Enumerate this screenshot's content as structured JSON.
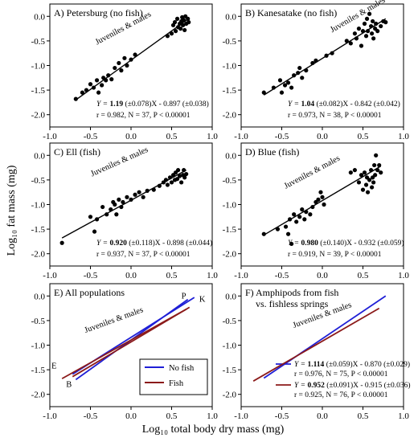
{
  "figure": {
    "ylabel": "Log₁₀ fat mass (mg)",
    "xlabel": "Log₁₀ total body dry mass (mg)"
  },
  "chart_data": [
    {
      "id": "A",
      "type": "scatter",
      "title": "A) Petersburg (no fish)",
      "annotation": "Juveniles & males",
      "eq": {
        "lead": "Y = ",
        "slope": "1.19",
        "rest": " (±0.078)X - 0.897 (±0.038)"
      },
      "stats": "r = 0.982, N = 37, P < 0.00001",
      "xlim": [
        -1.0,
        1.0
      ],
      "ylim": [
        -2.25,
        0.25
      ],
      "xticks": [
        "-1.0",
        "-0.5",
        "0.0",
        "0.5",
        "1.0"
      ],
      "yticks": [
        "-2.0",
        "-1.5",
        "-1.0",
        "-0.5",
        "0.0"
      ],
      "line": {
        "x1": -0.68,
        "y1": -1.7,
        "x2": 0.7,
        "y2": -0.06
      },
      "points": [
        [
          -0.68,
          -1.68
        ],
        [
          -0.6,
          -1.55
        ],
        [
          -0.55,
          -1.5
        ],
        [
          -0.5,
          -1.38
        ],
        [
          -0.46,
          -1.45
        ],
        [
          -0.42,
          -1.3
        ],
        [
          -0.4,
          -1.55
        ],
        [
          -0.36,
          -1.4
        ],
        [
          -0.34,
          -1.25
        ],
        [
          -0.31,
          -1.3
        ],
        [
          -0.28,
          -1.2
        ],
        [
          -0.24,
          -1.28
        ],
        [
          -0.2,
          -1.05
        ],
        [
          -0.15,
          -0.95
        ],
        [
          -0.12,
          -1.1
        ],
        [
          -0.08,
          -0.85
        ],
        [
          -0.05,
          -1.0
        ],
        [
          0.0,
          -0.88
        ],
        [
          0.05,
          -0.78
        ],
        [
          0.45,
          -0.4
        ],
        [
          0.5,
          -0.35
        ],
        [
          0.52,
          -0.18
        ],
        [
          0.54,
          -0.12
        ],
        [
          0.55,
          -0.3
        ],
        [
          0.57,
          -0.05
        ],
        [
          0.58,
          -0.22
        ],
        [
          0.6,
          -0.15
        ],
        [
          0.61,
          -0.25
        ],
        [
          0.62,
          -0.1
        ],
        [
          0.63,
          -0.02
        ],
        [
          0.64,
          -0.18
        ],
        [
          0.65,
          -0.08
        ],
        [
          0.66,
          -0.28
        ],
        [
          0.67,
          0.0
        ],
        [
          0.68,
          -0.15
        ],
        [
          0.7,
          -0.05
        ],
        [
          0.71,
          -0.12
        ]
      ]
    },
    {
      "id": "B",
      "type": "scatter",
      "title": "B) Kanesatake (no fish)",
      "annotation": "Juveniles & males",
      "eq": {
        "lead": "Y = ",
        "slope": "1.04",
        "rest": " (±0.082)X - 0.842 (±0.042)"
      },
      "stats": "r = 0.973, N = 38, P < 0.00001",
      "xlim": [
        -1.0,
        1.0
      ],
      "ylim": [
        -2.25,
        0.25
      ],
      "xticks": [
        "-1.0",
        "-0.5",
        "0.0",
        "0.5",
        "1.0"
      ],
      "yticks": [
        "-2.0",
        "-1.5",
        "-1.0",
        "-0.5",
        "0.0"
      ],
      "line": {
        "x1": -0.72,
        "y1": -1.6,
        "x2": 0.78,
        "y2": -0.05
      },
      "points": [
        [
          -0.72,
          -1.55
        ],
        [
          -0.6,
          -1.45
        ],
        [
          -0.52,
          -1.3
        ],
        [
          -0.5,
          -1.55
        ],
        [
          -0.46,
          -1.4
        ],
        [
          -0.42,
          -1.35
        ],
        [
          -0.38,
          -1.45
        ],
        [
          -0.35,
          -1.2
        ],
        [
          -0.3,
          -1.15
        ],
        [
          -0.28,
          -1.05
        ],
        [
          -0.25,
          -1.25
        ],
        [
          -0.2,
          -1.1
        ],
        [
          -0.12,
          -0.95
        ],
        [
          -0.08,
          -0.9
        ],
        [
          0.05,
          -0.8
        ],
        [
          0.12,
          -0.75
        ],
        [
          0.35,
          -0.55
        ],
        [
          0.4,
          -0.35
        ],
        [
          0.42,
          -0.45
        ],
        [
          0.45,
          -0.25
        ],
        [
          0.48,
          -0.6
        ],
        [
          0.5,
          -0.3
        ],
        [
          0.52,
          -0.15
        ],
        [
          0.54,
          -0.4
        ],
        [
          0.55,
          -0.05
        ],
        [
          0.56,
          -0.3
        ],
        [
          0.58,
          0.05
        ],
        [
          0.6,
          -0.2
        ],
        [
          0.61,
          -0.35
        ],
        [
          0.62,
          -0.1
        ],
        [
          0.63,
          -0.45
        ],
        [
          0.65,
          -0.25
        ],
        [
          0.66,
          -0.15
        ],
        [
          0.68,
          -0.3
        ],
        [
          0.72,
          -0.2
        ],
        [
          0.75,
          -0.1
        ],
        [
          0.78,
          -0.12
        ],
        [
          0.3,
          -0.5
        ]
      ]
    },
    {
      "id": "C",
      "type": "scatter",
      "title": "C) Ell (fish)",
      "annotation": "Juveniles & males",
      "eq": {
        "lead": "Y = ",
        "slope": "0.920",
        "rest": " (±0.118)X - 0.898 (±0.044)"
      },
      "stats": "r = 0.937, N = 37, P < 0.00001",
      "xlim": [
        -1.0,
        1.0
      ],
      "ylim": [
        -2.25,
        0.25
      ],
      "xticks": [
        "-1.0",
        "-0.5",
        "0.0",
        "0.5",
        "1.0"
      ],
      "yticks": [
        "-2.0",
        "-1.5",
        "-1.0",
        "-0.5",
        "0.0"
      ],
      "line": {
        "x1": -0.85,
        "y1": -1.68,
        "x2": 0.68,
        "y2": -0.3
      },
      "points": [
        [
          -0.85,
          -1.78
        ],
        [
          -0.5,
          -1.25
        ],
        [
          -0.45,
          -1.55
        ],
        [
          -0.42,
          -1.3
        ],
        [
          -0.35,
          -1.05
        ],
        [
          -0.3,
          -1.2
        ],
        [
          -0.25,
          -1.1
        ],
        [
          -0.22,
          -0.95
        ],
        [
          -0.2,
          -1.0
        ],
        [
          -0.18,
          -1.2
        ],
        [
          -0.15,
          -0.9
        ],
        [
          -0.12,
          -1.05
        ],
        [
          -0.1,
          -0.95
        ],
        [
          -0.05,
          -0.85
        ],
        [
          0.0,
          -0.9
        ],
        [
          0.05,
          -0.8
        ],
        [
          0.1,
          -0.75
        ],
        [
          0.15,
          -0.85
        ],
        [
          0.2,
          -0.72
        ],
        [
          0.28,
          -0.7
        ],
        [
          0.35,
          -0.62
        ],
        [
          0.4,
          -0.55
        ],
        [
          0.43,
          -0.5
        ],
        [
          0.45,
          -0.6
        ],
        [
          0.48,
          -0.45
        ],
        [
          0.5,
          -0.55
        ],
        [
          0.52,
          -0.4
        ],
        [
          0.54,
          -0.5
        ],
        [
          0.55,
          -0.35
        ],
        [
          0.57,
          -0.48
        ],
        [
          0.58,
          -0.3
        ],
        [
          0.6,
          -0.42
        ],
        [
          0.62,
          -0.55
        ],
        [
          0.64,
          -0.4
        ],
        [
          0.65,
          -0.3
        ],
        [
          0.66,
          -0.45
        ],
        [
          0.68,
          -0.38
        ]
      ]
    },
    {
      "id": "D",
      "type": "scatter",
      "title": "D) Blue (fish)",
      "annotation": "Juveniles & males",
      "eq": {
        "lead": "Y = ",
        "slope": "0.980",
        "rest": " (±0.140)X - 0.932 (±0.059)"
      },
      "stats": "r = 0.919, N = 39, P < 0.00001",
      "xlim": [
        -1.0,
        1.0
      ],
      "ylim": [
        -2.25,
        0.25
      ],
      "xticks": [
        "-1.0",
        "-0.5",
        "0.0",
        "0.5",
        "1.0"
      ],
      "yticks": [
        "-2.0",
        "-1.5",
        "-1.0",
        "-0.5",
        "0.0"
      ],
      "line": {
        "x1": -0.72,
        "y1": -1.62,
        "x2": 0.72,
        "y2": -0.22
      },
      "points": [
        [
          -0.72,
          -1.6
        ],
        [
          -0.55,
          -1.5
        ],
        [
          -0.45,
          -1.45
        ],
        [
          -0.42,
          -1.6
        ],
        [
          -0.4,
          -1.3
        ],
        [
          -0.38,
          -1.8
        ],
        [
          -0.35,
          -1.2
        ],
        [
          -0.32,
          -1.35
        ],
        [
          -0.28,
          -1.25
        ],
        [
          -0.25,
          -1.1
        ],
        [
          -0.22,
          -1.3
        ],
        [
          -0.2,
          -1.15
        ],
        [
          -0.15,
          -1.2
        ],
        [
          -0.12,
          -1.05
        ],
        [
          -0.08,
          -0.95
        ],
        [
          -0.05,
          -0.9
        ],
        [
          0.0,
          -0.85
        ],
        [
          0.02,
          -1.0
        ],
        [
          -0.02,
          -0.75
        ],
        [
          0.4,
          -0.3
        ],
        [
          0.45,
          -0.55
        ],
        [
          0.48,
          -0.4
        ],
        [
          0.5,
          -0.7
        ],
        [
          0.52,
          -0.35
        ],
        [
          0.54,
          -0.6
        ],
        [
          0.55,
          -0.45
        ],
        [
          0.56,
          -0.75
        ],
        [
          0.58,
          -0.5
        ],
        [
          0.6,
          -0.3
        ],
        [
          0.61,
          -0.65
        ],
        [
          0.62,
          -0.45
        ],
        [
          0.63,
          -0.55
        ],
        [
          0.64,
          -0.2
        ],
        [
          0.65,
          -0.4
        ],
        [
          0.66,
          0.0
        ],
        [
          0.68,
          -0.3
        ],
        [
          0.7,
          -0.2
        ],
        [
          0.72,
          -0.35
        ],
        [
          0.35,
          -0.35
        ]
      ]
    },
    {
      "id": "E",
      "type": "line",
      "title": "E) All populations",
      "annotation": "Juveniles & males",
      "xlim": [
        -1.0,
        1.0
      ],
      "ylim": [
        -2.25,
        0.25
      ],
      "xticks": [
        "-1.0",
        "-0.5",
        "0.0",
        "0.5",
        "1.0"
      ],
      "yticks": [
        "-2.0",
        "-1.5",
        "-1.0",
        "-0.5",
        "0.0"
      ],
      "legend": [
        {
          "name": "No fish",
          "color": "#1f1fd6"
        },
        {
          "name": "Fish",
          "color": "#8b1a1a"
        }
      ],
      "legend_position": "bottom-right",
      "series": [
        {
          "label": "P",
          "color": "#1f1fd6",
          "x": [
            -0.68,
            0.7
          ],
          "y": [
            -1.7,
            -0.07
          ]
        },
        {
          "label": "K",
          "color": "#1f1fd6",
          "x": [
            -0.72,
            0.78
          ],
          "y": [
            -1.59,
            -0.03
          ]
        },
        {
          "label": "E",
          "color": "#8b1a1a",
          "x": [
            -0.85,
            0.68
          ],
          "y": [
            -1.68,
            -0.27
          ]
        },
        {
          "label": "B",
          "color": "#8b1a1a",
          "x": [
            -0.72,
            0.72
          ],
          "y": [
            -1.64,
            -0.23
          ]
        }
      ]
    },
    {
      "id": "F",
      "type": "line",
      "title": "F) Amphipods from fish",
      "title2": "vs. fishless springs",
      "annotation": "Juveniles & males",
      "xlim": [
        -1.0,
        1.0
      ],
      "ylim": [
        -2.25,
        0.25
      ],
      "xticks": [
        "-1.0",
        "-0.5",
        "0.0",
        "0.5",
        "1.0"
      ],
      "yticks": [
        "-2.0",
        "-1.5",
        "-1.0",
        "-0.5",
        "0.0"
      ],
      "series": [
        {
          "color": "#1f1fd6",
          "x": [
            -0.72,
            0.78
          ],
          "y": [
            -1.67,
            0.0
          ],
          "eq": {
            "lead": "Y = ",
            "slope": "1.114",
            "rest": " (±0.059)X - 0.870 (±0.029)"
          },
          "stats": "r = 0.976, N = 75, P < 0.00001"
        },
        {
          "color": "#8b1a1a",
          "x": [
            -0.85,
            0.7
          ],
          "y": [
            -1.73,
            -0.25
          ],
          "eq": {
            "lead": "Y = ",
            "slope": "0.952",
            "rest": " (±0.091)X - 0.915 (±0.036)"
          },
          "stats": "r = 0.925, N = 76, P < 0.00001"
        }
      ]
    }
  ]
}
